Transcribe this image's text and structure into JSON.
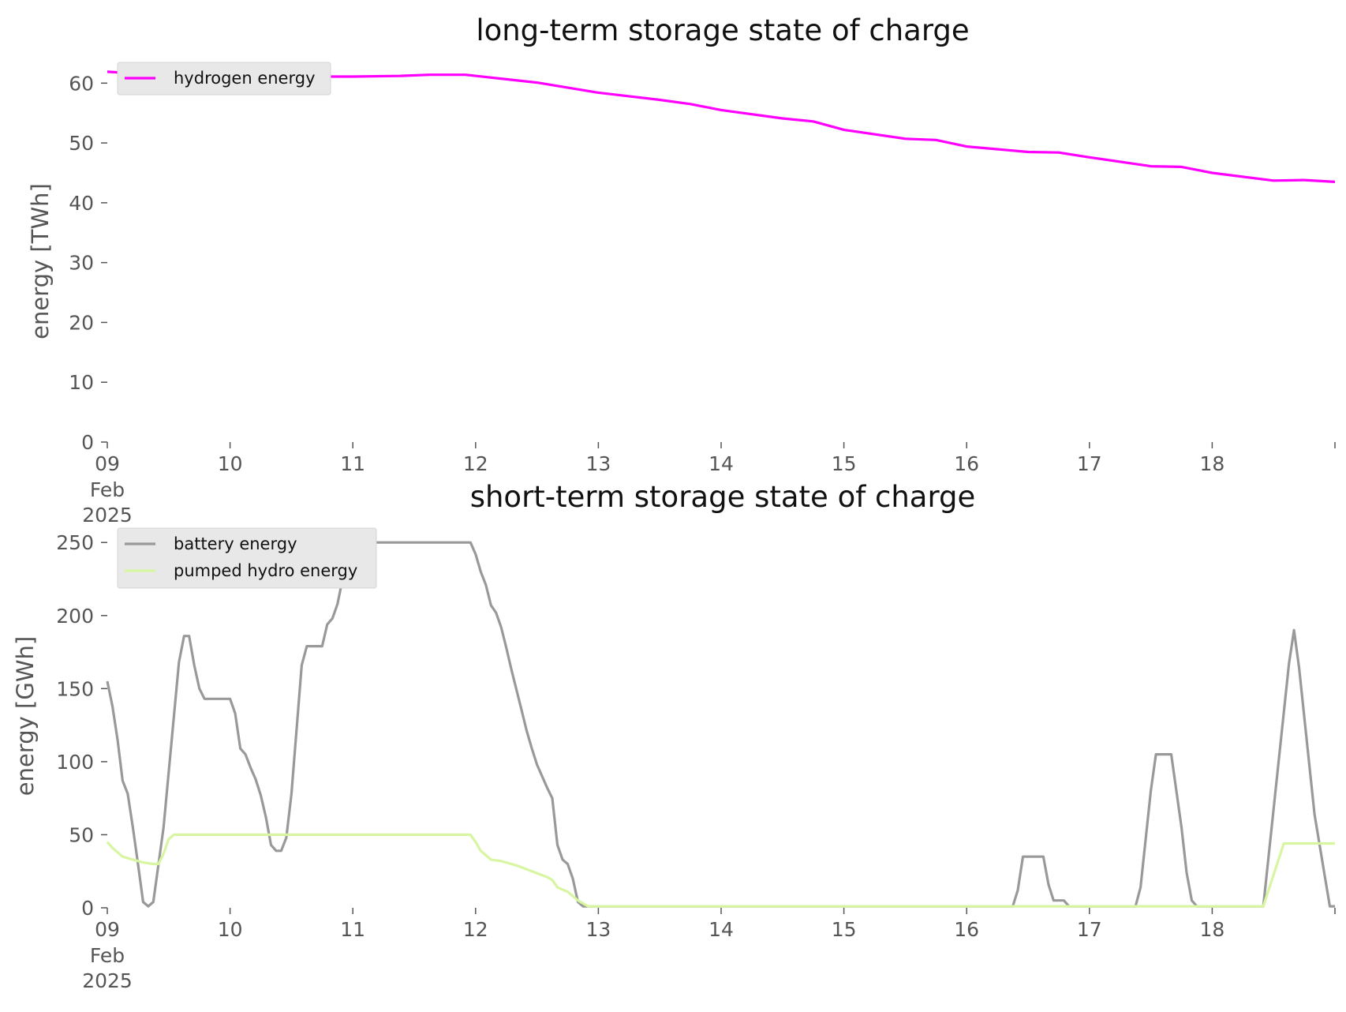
{
  "chart_data": [
    {
      "type": "line",
      "title": "long-term storage state of charge",
      "xlabel": "",
      "ylabel": "energy [TWh]",
      "xlim": [
        "2025-02-09",
        "2025-02-19"
      ],
      "ylim": [
        0,
        64
      ],
      "yticks": [
        0,
        10,
        20,
        30,
        40,
        50,
        60
      ],
      "xticks": [
        {
          "label": "09",
          "sub": [
            "Feb",
            "2025"
          ]
        },
        {
          "label": "10",
          "sub": []
        },
        {
          "label": "11",
          "sub": []
        },
        {
          "label": "12",
          "sub": []
        },
        {
          "label": "13",
          "sub": []
        },
        {
          "label": "14",
          "sub": []
        },
        {
          "label": "15",
          "sub": []
        },
        {
          "label": "16",
          "sub": []
        },
        {
          "label": "17",
          "sub": []
        },
        {
          "label": "18",
          "sub": []
        }
      ],
      "grid": false,
      "legend": "top-left",
      "series": [
        {
          "name": "hydrogen energy",
          "color": "#ff00ff",
          "points": [
            [
              "2025-02-09 00:00",
              61.9
            ],
            [
              "2025-02-09 12:00",
              61.3
            ],
            [
              "2025-02-10 00:00",
              61.2
            ],
            [
              "2025-02-10 12:00",
              61.1
            ],
            [
              "2025-02-11 00:00",
              61.1
            ],
            [
              "2025-02-11 09:00",
              61.2
            ],
            [
              "2025-02-11 15:00",
              61.4
            ],
            [
              "2025-02-11 22:00",
              61.4
            ],
            [
              "2025-02-12 12:00",
              60.1
            ],
            [
              "2025-02-13 00:00",
              58.4
            ],
            [
              "2025-02-13 12:00",
              57.2
            ],
            [
              "2025-02-13 18:00",
              56.5
            ],
            [
              "2025-02-14 00:00",
              55.5
            ],
            [
              "2025-02-14 12:00",
              54.1
            ],
            [
              "2025-02-14 18:00",
              53.6
            ],
            [
              "2025-02-15 00:00",
              52.2
            ],
            [
              "2025-02-15 12:00",
              50.7
            ],
            [
              "2025-02-15 18:00",
              50.5
            ],
            [
              "2025-02-16 00:00",
              49.4
            ],
            [
              "2025-02-16 12:00",
              48.5
            ],
            [
              "2025-02-16 18:00",
              48.4
            ],
            [
              "2025-02-17 00:00",
              47.6
            ],
            [
              "2025-02-17 12:00",
              46.1
            ],
            [
              "2025-02-17 18:00",
              46.0
            ],
            [
              "2025-02-18 00:00",
              45.0
            ],
            [
              "2025-02-18 12:00",
              43.7
            ],
            [
              "2025-02-18 18:00",
              43.8
            ],
            [
              "2025-02-19 00:00",
              43.5
            ]
          ]
        }
      ]
    },
    {
      "type": "line",
      "title": "short-term storage state of charge",
      "xlabel": "",
      "ylabel": "energy [GWh]",
      "xlim": [
        "2025-02-09",
        "2025-02-19"
      ],
      "ylim": [
        0,
        262
      ],
      "yticks": [
        0,
        50,
        100,
        150,
        200,
        250
      ],
      "xticks": [
        {
          "label": "09",
          "sub": [
            "Feb",
            "2025"
          ]
        },
        {
          "label": "10",
          "sub": []
        },
        {
          "label": "11",
          "sub": []
        },
        {
          "label": "12",
          "sub": []
        },
        {
          "label": "13",
          "sub": []
        },
        {
          "label": "14",
          "sub": []
        },
        {
          "label": "15",
          "sub": []
        },
        {
          "label": "16",
          "sub": []
        },
        {
          "label": "17",
          "sub": []
        },
        {
          "label": "18",
          "sub": []
        }
      ],
      "grid": false,
      "legend": "top-left",
      "series": [
        {
          "name": "battery energy",
          "color": "#999999",
          "points": [
            [
              "2025-02-09 00:00",
              155
            ],
            [
              "2025-02-09 01:00",
              138
            ],
            [
              "2025-02-09 02:00",
              115
            ],
            [
              "2025-02-09 03:00",
              87
            ],
            [
              "2025-02-09 04:00",
              78
            ],
            [
              "2025-02-09 05:00",
              55
            ],
            [
              "2025-02-09 06:00",
              30
            ],
            [
              "2025-02-09 07:00",
              4
            ],
            [
              "2025-02-09 08:00",
              1
            ],
            [
              "2025-02-09 09:00",
              4
            ],
            [
              "2025-02-09 11:00",
              55
            ],
            [
              "2025-02-09 14:00",
              168
            ],
            [
              "2025-02-09 15:00",
              186
            ],
            [
              "2025-02-09 16:00",
              186
            ],
            [
              "2025-02-09 17:00",
              166
            ],
            [
              "2025-02-09 18:00",
              150
            ],
            [
              "2025-02-09 19:00",
              143
            ],
            [
              "2025-02-10 00:00",
              143
            ],
            [
              "2025-02-10 01:00",
              133
            ],
            [
              "2025-02-10 02:00",
              109
            ],
            [
              "2025-02-10 03:00",
              105
            ],
            [
              "2025-02-10 04:00",
              96
            ],
            [
              "2025-02-10 05:00",
              88
            ],
            [
              "2025-02-10 06:00",
              77
            ],
            [
              "2025-02-10 07:00",
              62
            ],
            [
              "2025-02-10 08:00",
              43
            ],
            [
              "2025-02-10 09:00",
              39
            ],
            [
              "2025-02-10 10:00",
              39
            ],
            [
              "2025-02-10 11:00",
              48
            ],
            [
              "2025-02-10 12:00",
              78
            ],
            [
              "2025-02-10 14:00",
              166
            ],
            [
              "2025-02-10 15:00",
              179
            ],
            [
              "2025-02-10 18:00",
              179
            ],
            [
              "2025-02-10 19:00",
              194
            ],
            [
              "2025-02-10 20:00",
              198
            ],
            [
              "2025-02-10 21:00",
              208
            ],
            [
              "2025-02-10 22:00",
              225
            ],
            [
              "2025-02-10 23:00",
              250
            ],
            [
              "2025-02-11 23:00",
              250
            ],
            [
              "2025-02-12 00:00",
              242
            ],
            [
              "2025-02-12 01:00",
              230
            ],
            [
              "2025-02-12 02:00",
              221
            ],
            [
              "2025-02-12 03:00",
              207
            ],
            [
              "2025-02-12 04:00",
              202
            ],
            [
              "2025-02-12 05:00",
              192
            ],
            [
              "2025-02-12 06:00",
              178
            ],
            [
              "2025-02-12 07:00",
              163
            ],
            [
              "2025-02-12 08:00",
              149
            ],
            [
              "2025-02-12 09:00",
              135
            ],
            [
              "2025-02-12 10:00",
              121
            ],
            [
              "2025-02-12 11:00",
              109
            ],
            [
              "2025-02-12 12:00",
              98
            ],
            [
              "2025-02-12 13:00",
              90
            ],
            [
              "2025-02-12 14:00",
              82
            ],
            [
              "2025-02-12 15:00",
              75
            ],
            [
              "2025-02-12 16:00",
              43
            ],
            [
              "2025-02-12 17:00",
              33
            ],
            [
              "2025-02-12 18:00",
              30
            ],
            [
              "2025-02-12 19:00",
              20
            ],
            [
              "2025-02-12 20:00",
              4
            ],
            [
              "2025-02-12 21:00",
              1
            ],
            [
              "2025-02-16 09:00",
              1
            ],
            [
              "2025-02-16 10:00",
              12
            ],
            [
              "2025-02-16 11:00",
              35
            ],
            [
              "2025-02-16 15:00",
              35
            ],
            [
              "2025-02-16 16:00",
              16
            ],
            [
              "2025-02-16 17:00",
              5
            ],
            [
              "2025-02-16 19:00",
              5
            ],
            [
              "2025-02-16 20:00",
              1
            ],
            [
              "2025-02-17 09:00",
              1
            ],
            [
              "2025-02-17 10:00",
              14
            ],
            [
              "2025-02-17 12:00",
              80
            ],
            [
              "2025-02-17 13:00",
              105
            ],
            [
              "2025-02-17 16:00",
              105
            ],
            [
              "2025-02-17 18:00",
              55
            ],
            [
              "2025-02-17 19:00",
              24
            ],
            [
              "2025-02-17 20:00",
              5
            ],
            [
              "2025-02-17 21:00",
              1
            ],
            [
              "2025-02-18 10:00",
              1
            ],
            [
              "2025-02-18 15:00",
              167
            ],
            [
              "2025-02-18 16:00",
              190
            ],
            [
              "2025-02-18 17:00",
              164
            ],
            [
              "2025-02-18 20:00",
              64
            ],
            [
              "2025-02-18 22:00",
              22
            ],
            [
              "2025-02-18 23:00",
              1
            ],
            [
              "2025-02-19 00:00",
              1
            ]
          ]
        },
        {
          "name": "pumped hydro energy",
          "color": "#d8f5a2",
          "points": [
            [
              "2025-02-09 00:00",
              45
            ],
            [
              "2025-02-09 01:00",
              41
            ],
            [
              "2025-02-09 02:00",
              38
            ],
            [
              "2025-02-09 03:00",
              35
            ],
            [
              "2025-02-09 05:00",
              33
            ],
            [
              "2025-02-09 07:00",
              31
            ],
            [
              "2025-02-09 09:00",
              30
            ],
            [
              "2025-02-09 10:00",
              30
            ],
            [
              "2025-02-09 11:00",
              37
            ],
            [
              "2025-02-09 12:00",
              47
            ],
            [
              "2025-02-09 13:00",
              50
            ],
            [
              "2025-02-11 23:00",
              50
            ],
            [
              "2025-02-12 00:00",
              45
            ],
            [
              "2025-02-12 01:00",
              39
            ],
            [
              "2025-02-12 03:00",
              33
            ],
            [
              "2025-02-12 05:00",
              32
            ],
            [
              "2025-02-12 08:00",
              29
            ],
            [
              "2025-02-12 11:00",
              25
            ],
            [
              "2025-02-12 14:00",
              21
            ],
            [
              "2025-02-12 15:00",
              19
            ],
            [
              "2025-02-12 16:00",
              14
            ],
            [
              "2025-02-12 18:00",
              11
            ],
            [
              "2025-02-12 20:00",
              5
            ],
            [
              "2025-02-12 22:00",
              1
            ],
            [
              "2025-02-18 10:00",
              1
            ],
            [
              "2025-02-18 14:00",
              44
            ],
            [
              "2025-02-19 00:00",
              44
            ]
          ]
        }
      ]
    }
  ]
}
